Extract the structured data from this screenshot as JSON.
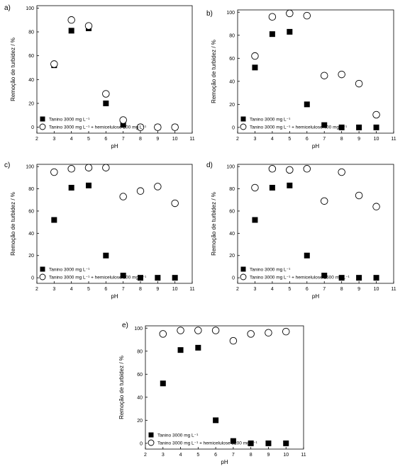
{
  "chart_data": [
    {
      "panel": "a)",
      "type": "scatter",
      "xlabel": "pH",
      "ylabel": "Remoção de turbidez / %",
      "xlim": [
        2,
        11
      ],
      "ylim": [
        -5,
        102
      ],
      "xticks": [
        "2",
        "3",
        "4",
        "5",
        "6",
        "7",
        "8",
        "9",
        "10",
        "11"
      ],
      "yticks": [
        "0",
        "20",
        "40",
        "60",
        "80",
        "100"
      ],
      "grid": false,
      "legend_position": "bottom-left",
      "series": [
        {
          "name": "Tanino 3000 mg L⁻¹",
          "marker": "filled-square",
          "x": [
            3,
            4,
            5,
            6,
            7,
            8,
            9,
            10
          ],
          "y": [
            52,
            81,
            83,
            20,
            2,
            0,
            0,
            0
          ]
        },
        {
          "name": "Tanino 3000 mg L⁻¹ + hemicelulose 200 mg L⁻¹",
          "marker": "open-circle",
          "x": [
            3,
            4,
            5,
            6,
            7,
            8,
            9,
            10
          ],
          "y": [
            53,
            90,
            85,
            28,
            6,
            0,
            0,
            0
          ]
        }
      ]
    },
    {
      "panel": "b)",
      "type": "scatter",
      "xlabel": "pH",
      "ylabel": "Remoção de turbidez / %",
      "xlim": [
        2,
        11
      ],
      "ylim": [
        -5,
        102
      ],
      "xticks": [
        "2",
        "3",
        "4",
        "5",
        "6",
        "7",
        "8",
        "9",
        "10",
        "11"
      ],
      "yticks": [
        "0",
        "20",
        "40",
        "60",
        "80",
        "100"
      ],
      "grid": false,
      "legend_position": "bottom-left",
      "series": [
        {
          "name": "Tanino 3000 mg L⁻¹",
          "marker": "filled-square",
          "x": [
            3,
            4,
            5,
            6,
            7,
            8,
            9,
            10
          ],
          "y": [
            52,
            81,
            83,
            20,
            2,
            0,
            0,
            0
          ]
        },
        {
          "name": "Tanino 3000 mg L⁻¹ + hemicelulose 400 mg L⁻¹",
          "marker": "open-circle",
          "x": [
            3,
            4,
            5,
            6,
            7,
            8,
            9,
            10
          ],
          "y": [
            62,
            96,
            99,
            97,
            45,
            46,
            38,
            11
          ]
        }
      ]
    },
    {
      "panel": "c)",
      "type": "scatter",
      "xlabel": "pH",
      "ylabel": "Remoção de turbidez / %",
      "xlim": [
        2,
        11
      ],
      "ylim": [
        -5,
        102
      ],
      "xticks": [
        "2",
        "3",
        "4",
        "5",
        "6",
        "7",
        "8",
        "9",
        "10",
        "11"
      ],
      "yticks": [
        "0",
        "20",
        "40",
        "60",
        "80",
        "100"
      ],
      "grid": false,
      "legend_position": "bottom-left",
      "series": [
        {
          "name": "Tanino 3000 mg L⁻¹",
          "marker": "filled-square",
          "x": [
            3,
            4,
            5,
            6,
            7,
            8,
            9,
            10
          ],
          "y": [
            52,
            81,
            83,
            20,
            2,
            0,
            0,
            0
          ]
        },
        {
          "name": "Tanino 3000 mg L⁻¹ + hemicelulose 800 mg L⁻¹",
          "marker": "open-circle",
          "x": [
            3,
            4,
            5,
            6,
            7,
            8,
            9,
            10
          ],
          "y": [
            95,
            98,
            99,
            99,
            73,
            78,
            82,
            67
          ]
        }
      ]
    },
    {
      "panel": "d)",
      "type": "scatter",
      "xlabel": "pH",
      "ylabel": "Remoção de turbidez / %",
      "xlim": [
        2,
        11
      ],
      "ylim": [
        -5,
        102
      ],
      "xticks": [
        "2",
        "3",
        "4",
        "5",
        "6",
        "7",
        "8",
        "9",
        "10",
        "11"
      ],
      "yticks": [
        "0",
        "20",
        "40",
        "60",
        "80",
        "100"
      ],
      "grid": false,
      "legend_position": "bottom-left",
      "series": [
        {
          "name": "Tanino 3000 mg L⁻¹",
          "marker": "filled-square",
          "x": [
            3,
            4,
            5,
            6,
            7,
            8,
            9,
            10
          ],
          "y": [
            52,
            81,
            83,
            20,
            2,
            0,
            0,
            0
          ]
        },
        {
          "name": "Tanino 3000 mg L⁻¹ + hemicelulose 1600 mg L⁻¹",
          "marker": "open-circle",
          "x": [
            3,
            4,
            5,
            6,
            7,
            8,
            9,
            10
          ],
          "y": [
            81,
            98,
            97,
            98,
            69,
            95,
            74,
            64
          ]
        }
      ]
    },
    {
      "panel": "e)",
      "type": "scatter",
      "xlabel": "pH",
      "ylabel": "Remoção de turbidez / %",
      "xlim": [
        2,
        11
      ],
      "ylim": [
        -5,
        102
      ],
      "xticks": [
        "2",
        "3",
        "4",
        "5",
        "6",
        "7",
        "8",
        "9",
        "10",
        "11"
      ],
      "yticks": [
        "0",
        "20",
        "40",
        "60",
        "80",
        "100"
      ],
      "grid": false,
      "legend_position": "bottom-left",
      "series": [
        {
          "name": "Tanino 3000 mg L⁻¹",
          "marker": "filled-square",
          "x": [
            3,
            4,
            5,
            6,
            7,
            8,
            9,
            10
          ],
          "y": [
            52,
            81,
            83,
            20,
            2,
            0,
            0,
            0
          ]
        },
        {
          "name": "Tanino 3000 mg L⁻¹ + hemicelulose 3200 mg L⁻¹",
          "marker": "open-circle",
          "x": [
            3,
            4,
            5,
            6,
            7,
            8,
            9,
            10
          ],
          "y": [
            95,
            98,
            98,
            98,
            89,
            95,
            96,
            97
          ]
        }
      ]
    }
  ]
}
